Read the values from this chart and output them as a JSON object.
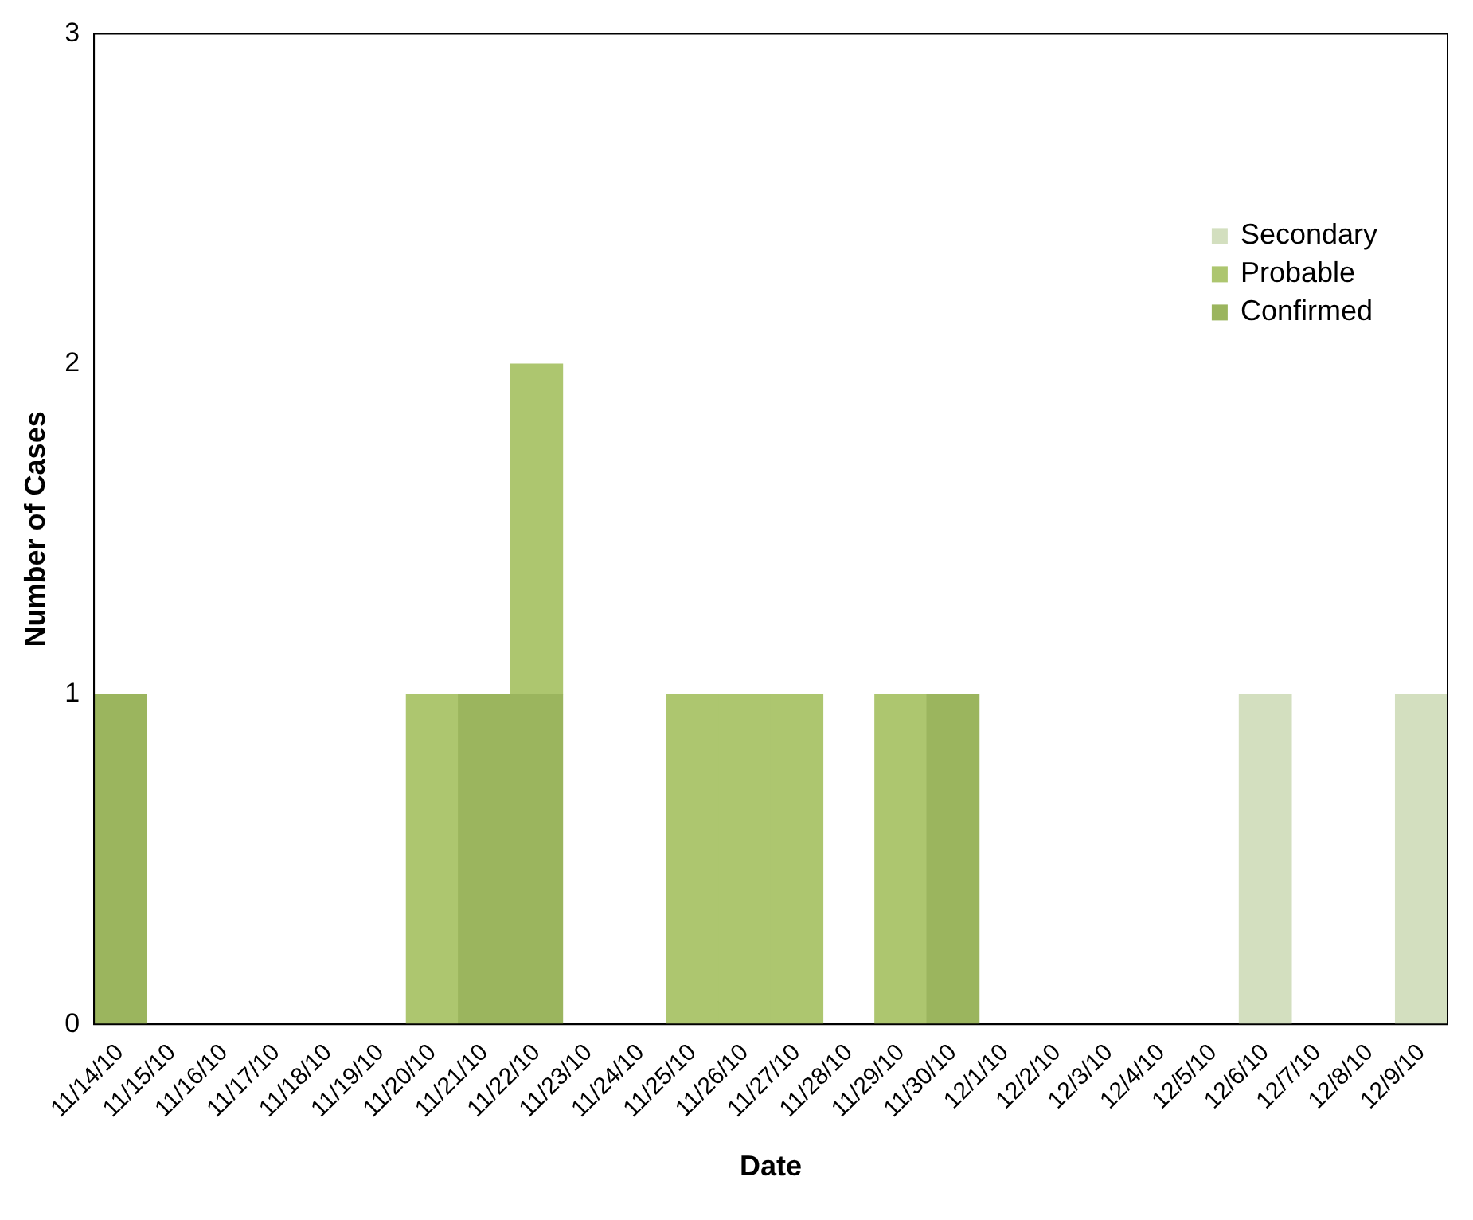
{
  "chart_data": {
    "type": "bar",
    "stacked": true,
    "xlabel": "Date",
    "ylabel": "Number of Cases",
    "categories": [
      "11/14/10",
      "11/15/10",
      "11/16/10",
      "11/17/10",
      "11/18/10",
      "11/19/10",
      "11/20/10",
      "11/21/10",
      "11/22/10",
      "11/23/10",
      "11/24/10",
      "11/25/10",
      "11/26/10",
      "11/27/10",
      "11/28/10",
      "11/29/10",
      "11/30/10",
      "12/1/10",
      "12/2/10",
      "12/3/10",
      "12/4/10",
      "12/5/10",
      "12/6/10",
      "12/7/10",
      "12/8/10",
      "12/9/10"
    ],
    "series": [
      {
        "name": "Confirmed",
        "color": "#9bb55e",
        "values": [
          1,
          null,
          null,
          null,
          null,
          null,
          null,
          1,
          1,
          null,
          null,
          null,
          null,
          null,
          null,
          null,
          1,
          null,
          null,
          null,
          null,
          null,
          null,
          null,
          null,
          null
        ]
      },
      {
        "name": "Probable",
        "color": "#adc66f",
        "values": [
          null,
          null,
          null,
          null,
          null,
          null,
          1,
          null,
          1,
          null,
          null,
          1,
          1,
          1,
          null,
          1,
          null,
          null,
          null,
          null,
          null,
          null,
          null,
          null,
          null,
          null
        ]
      },
      {
        "name": "Secondary",
        "color": "#d3dfbf",
        "values": [
          null,
          null,
          null,
          null,
          null,
          null,
          null,
          null,
          null,
          null,
          null,
          null,
          null,
          null,
          null,
          null,
          null,
          null,
          null,
          null,
          null,
          null,
          1,
          null,
          null,
          1
        ]
      }
    ],
    "ylim": [
      0,
      3
    ],
    "yticks": [
      0,
      1,
      2,
      3
    ],
    "grid": false,
    "legend": "top right"
  }
}
